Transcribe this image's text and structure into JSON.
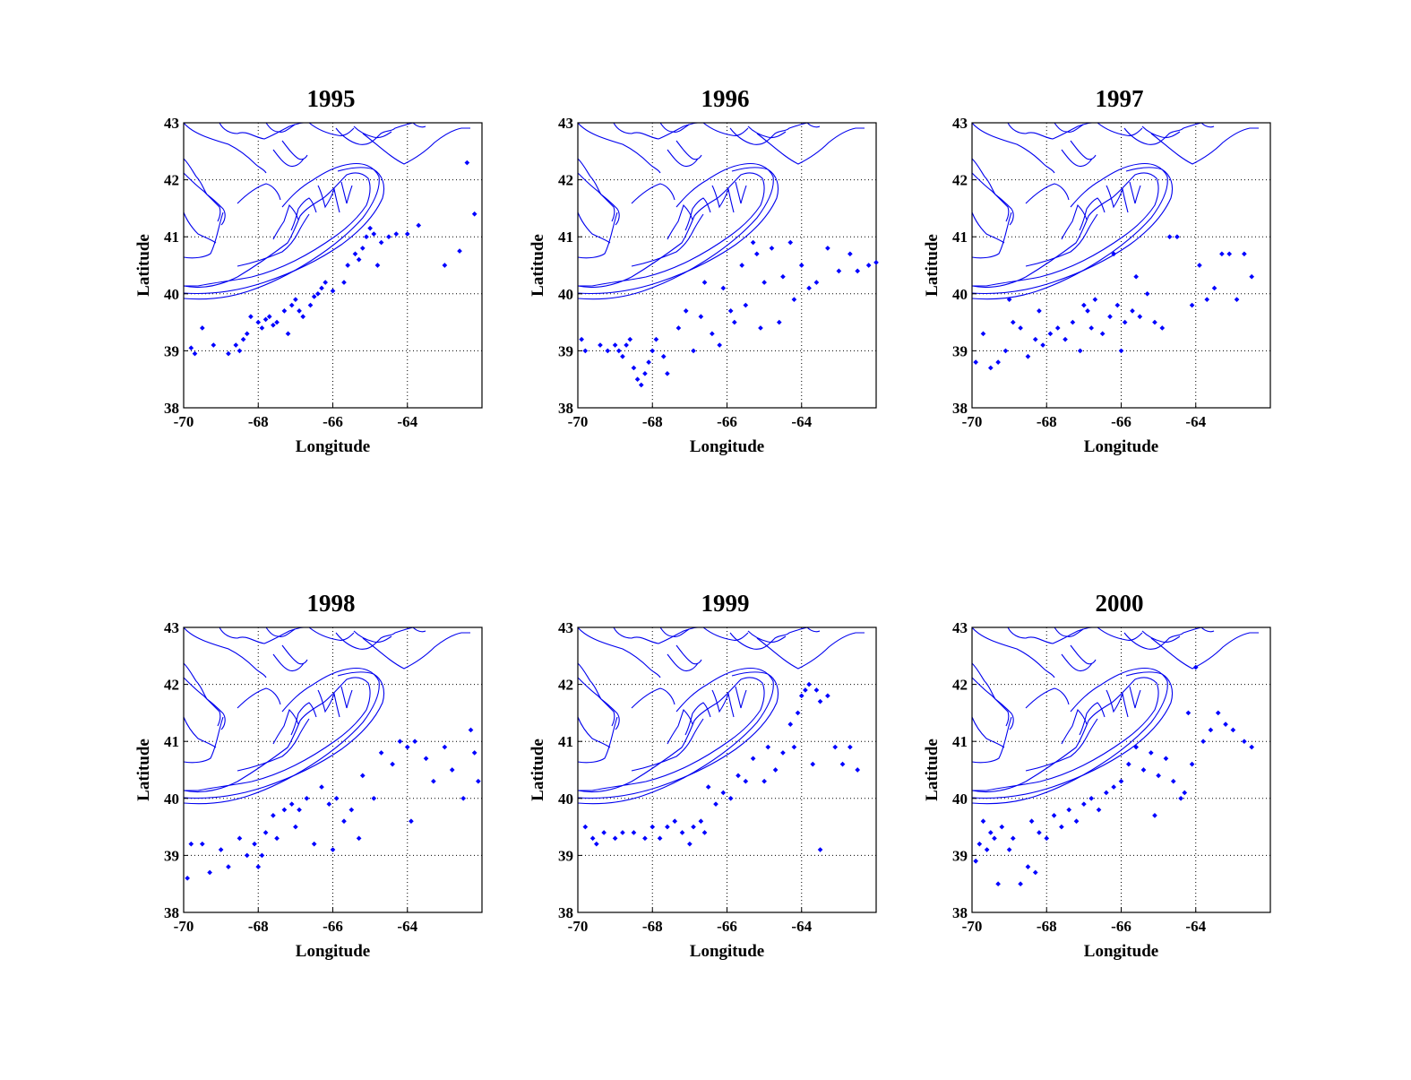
{
  "chart_data": [
    {
      "type": "scatter",
      "title": "1995",
      "xlabel": "Longitude",
      "ylabel": "Latitude",
      "xlim": [
        -70,
        -62
      ],
      "ylim": [
        38,
        43
      ],
      "xticks": [
        "-70",
        "-68",
        "-66",
        "-64"
      ],
      "yticks": [
        "38",
        "39",
        "40",
        "41",
        "42",
        "43"
      ],
      "grid": true,
      "marker_color": "#0000ff",
      "points": [
        [
          -69.8,
          39.05
        ],
        [
          -69.7,
          38.95
        ],
        [
          -69.5,
          39.4
        ],
        [
          -69.2,
          39.1
        ],
        [
          -68.8,
          38.95
        ],
        [
          -68.6,
          39.1
        ],
        [
          -68.5,
          39.0
        ],
        [
          -68.4,
          39.2
        ],
        [
          -68.3,
          39.3
        ],
        [
          -68.0,
          39.5
        ],
        [
          -67.9,
          39.4
        ],
        [
          -67.8,
          39.55
        ],
        [
          -67.7,
          39.6
        ],
        [
          -67.6,
          39.45
        ],
        [
          -67.5,
          39.5
        ],
        [
          -67.3,
          39.7
        ],
        [
          -67.1,
          39.8
        ],
        [
          -67.0,
          39.9
        ],
        [
          -66.9,
          39.7
        ],
        [
          -66.8,
          39.6
        ],
        [
          -66.6,
          39.8
        ],
        [
          -66.5,
          39.95
        ],
        [
          -66.4,
          40.0
        ],
        [
          -66.3,
          40.1
        ],
        [
          -66.2,
          40.2
        ],
        [
          -66.0,
          40.05
        ],
        [
          -65.7,
          40.2
        ],
        [
          -65.6,
          40.5
        ],
        [
          -65.4,
          40.7
        ],
        [
          -65.2,
          40.8
        ],
        [
          -65.1,
          41.0
        ],
        [
          -65.0,
          41.15
        ],
        [
          -64.9,
          41.05
        ],
        [
          -64.7,
          40.9
        ],
        [
          -64.5,
          41.0
        ],
        [
          -64.3,
          41.05
        ],
        [
          -64.0,
          41.05
        ],
        [
          -63.7,
          41.2
        ],
        [
          -63.0,
          40.5
        ],
        [
          -62.6,
          40.75
        ],
        [
          -62.4,
          42.3
        ],
        [
          -62.2,
          41.4
        ],
        [
          -64.8,
          40.5
        ],
        [
          -65.3,
          40.6
        ],
        [
          -67.2,
          39.3
        ],
        [
          -68.2,
          39.6
        ]
      ]
    },
    {
      "type": "scatter",
      "title": "1996",
      "xlabel": "Longitude",
      "ylabel": "Latitude",
      "xlim": [
        -70,
        -62
      ],
      "ylim": [
        38,
        43
      ],
      "xticks": [
        "-70",
        "-68",
        "-66",
        "-64"
      ],
      "yticks": [
        "38",
        "39",
        "40",
        "41",
        "42",
        "43"
      ],
      "grid": true,
      "marker_color": "#0000ff",
      "points": [
        [
          -69.9,
          39.2
        ],
        [
          -69.8,
          39.0
        ],
        [
          -69.4,
          39.1
        ],
        [
          -69.2,
          39.0
        ],
        [
          -69.0,
          39.1
        ],
        [
          -68.9,
          39.0
        ],
        [
          -68.8,
          38.9
        ],
        [
          -68.7,
          39.1
        ],
        [
          -68.6,
          39.2
        ],
        [
          -68.5,
          38.7
        ],
        [
          -68.4,
          38.5
        ],
        [
          -68.3,
          38.4
        ],
        [
          -68.2,
          38.6
        ],
        [
          -68.1,
          38.8
        ],
        [
          -68.0,
          39.0
        ],
        [
          -67.9,
          39.2
        ],
        [
          -67.7,
          38.9
        ],
        [
          -67.6,
          38.6
        ],
        [
          -67.3,
          39.4
        ],
        [
          -67.1,
          39.7
        ],
        [
          -66.9,
          39.0
        ],
        [
          -66.7,
          39.6
        ],
        [
          -66.6,
          40.2
        ],
        [
          -66.4,
          39.3
        ],
        [
          -66.2,
          39.1
        ],
        [
          -66.1,
          40.1
        ],
        [
          -65.9,
          39.7
        ],
        [
          -65.8,
          39.5
        ],
        [
          -65.6,
          40.5
        ],
        [
          -65.5,
          39.8
        ],
        [
          -65.3,
          40.9
        ],
        [
          -65.2,
          40.7
        ],
        [
          -65.0,
          40.2
        ],
        [
          -64.8,
          40.8
        ],
        [
          -64.5,
          40.3
        ],
        [
          -64.3,
          40.9
        ],
        [
          -64.2,
          39.9
        ],
        [
          -64.0,
          40.5
        ],
        [
          -63.8,
          40.1
        ],
        [
          -63.6,
          40.2
        ],
        [
          -63.3,
          40.8
        ],
        [
          -63.0,
          40.4
        ],
        [
          -62.7,
          40.7
        ],
        [
          -62.5,
          40.4
        ],
        [
          -62.2,
          40.5
        ],
        [
          -62.0,
          40.55
        ],
        [
          -64.6,
          39.5
        ],
        [
          -65.1,
          39.4
        ]
      ]
    },
    {
      "type": "scatter",
      "title": "1997",
      "xlabel": "Longitude",
      "ylabel": "Latitude",
      "xlim": [
        -70,
        -62
      ],
      "ylim": [
        38,
        43
      ],
      "xticks": [
        "-70",
        "-68",
        "-66",
        "-64"
      ],
      "yticks": [
        "38",
        "39",
        "40",
        "41",
        "42",
        "43"
      ],
      "grid": true,
      "marker_color": "#0000ff",
      "points": [
        [
          -69.9,
          38.8
        ],
        [
          -69.7,
          39.3
        ],
        [
          -69.5,
          38.7
        ],
        [
          -69.3,
          38.8
        ],
        [
          -69.1,
          39.0
        ],
        [
          -68.9,
          39.5
        ],
        [
          -68.7,
          39.4
        ],
        [
          -68.5,
          38.9
        ],
        [
          -68.3,
          39.2
        ],
        [
          -68.1,
          39.1
        ],
        [
          -67.9,
          39.3
        ],
        [
          -67.7,
          39.4
        ],
        [
          -67.5,
          39.2
        ],
        [
          -67.3,
          39.5
        ],
        [
          -67.1,
          39.0
        ],
        [
          -66.9,
          39.7
        ],
        [
          -66.7,
          39.9
        ],
        [
          -66.5,
          39.3
        ],
        [
          -66.3,
          39.6
        ],
        [
          -66.1,
          39.8
        ],
        [
          -65.9,
          39.5
        ],
        [
          -65.7,
          39.7
        ],
        [
          -65.5,
          39.6
        ],
        [
          -65.3,
          40.0
        ],
        [
          -65.1,
          39.5
        ],
        [
          -64.9,
          39.4
        ],
        [
          -64.7,
          41.0
        ],
        [
          -64.5,
          41.0
        ],
        [
          -63.9,
          40.5
        ],
        [
          -63.7,
          39.9
        ],
        [
          -63.5,
          40.1
        ],
        [
          -63.3,
          40.7
        ],
        [
          -63.1,
          40.7
        ],
        [
          -62.9,
          39.9
        ],
        [
          -62.7,
          40.7
        ],
        [
          -62.5,
          40.3
        ],
        [
          -65.6,
          40.3
        ],
        [
          -66.0,
          39.0
        ],
        [
          -66.2,
          40.7
        ],
        [
          -66.8,
          39.4
        ],
        [
          -67.0,
          39.8
        ],
        [
          -68.2,
          39.7
        ],
        [
          -69.0,
          39.9
        ],
        [
          -64.1,
          39.8
        ]
      ]
    },
    {
      "type": "scatter",
      "title": "1998",
      "xlabel": "Longitude",
      "ylabel": "Latitude",
      "xlim": [
        -70,
        -62
      ],
      "ylim": [
        38,
        43
      ],
      "xticks": [
        "-70",
        "-68",
        "-66",
        "-64"
      ],
      "yticks": [
        "38",
        "39",
        "40",
        "41",
        "42",
        "43"
      ],
      "grid": true,
      "marker_color": "#0000ff",
      "points": [
        [
          -69.9,
          38.6
        ],
        [
          -69.8,
          39.2
        ],
        [
          -69.5,
          39.2
        ],
        [
          -69.3,
          38.7
        ],
        [
          -69.0,
          39.1
        ],
        [
          -68.8,
          38.8
        ],
        [
          -68.5,
          39.3
        ],
        [
          -68.3,
          39.0
        ],
        [
          -68.1,
          39.2
        ],
        [
          -67.9,
          39.0
        ],
        [
          -67.8,
          39.4
        ],
        [
          -67.6,
          39.7
        ],
        [
          -67.5,
          39.3
        ],
        [
          -67.3,
          39.8
        ],
        [
          -67.1,
          39.9
        ],
        [
          -66.9,
          39.8
        ],
        [
          -66.7,
          40.0
        ],
        [
          -66.5,
          39.2
        ],
        [
          -66.3,
          40.2
        ],
        [
          -66.1,
          39.9
        ],
        [
          -65.9,
          40.0
        ],
        [
          -65.7,
          39.6
        ],
        [
          -65.5,
          39.8
        ],
        [
          -65.2,
          40.4
        ],
        [
          -64.9,
          40.0
        ],
        [
          -64.7,
          40.8
        ],
        [
          -64.4,
          40.6
        ],
        [
          -64.2,
          41.0
        ],
        [
          -64.0,
          40.9
        ],
        [
          -63.8,
          41.0
        ],
        [
          -63.5,
          40.7
        ],
        [
          -63.3,
          40.3
        ],
        [
          -63.0,
          40.9
        ],
        [
          -62.8,
          40.5
        ],
        [
          -62.5,
          40.0
        ],
        [
          -62.3,
          41.2
        ],
        [
          -62.2,
          40.8
        ],
        [
          -62.1,
          40.3
        ],
        [
          -63.9,
          39.6
        ],
        [
          -65.3,
          39.3
        ],
        [
          -66.0,
          39.1
        ],
        [
          -67.0,
          39.5
        ],
        [
          -68.0,
          38.8
        ]
      ]
    },
    {
      "type": "scatter",
      "title": "1999",
      "xlabel": "Longitude",
      "ylabel": "Latitude",
      "xlim": [
        -70,
        -62
      ],
      "ylim": [
        38,
        43
      ],
      "xticks": [
        "-70",
        "-68",
        "-66",
        "-64"
      ],
      "yticks": [
        "38",
        "39",
        "40",
        "41",
        "42",
        "43"
      ],
      "grid": true,
      "marker_color": "#0000ff",
      "points": [
        [
          -69.8,
          39.5
        ],
        [
          -69.6,
          39.3
        ],
        [
          -69.5,
          39.2
        ],
        [
          -69.3,
          39.4
        ],
        [
          -69.0,
          39.3
        ],
        [
          -68.8,
          39.4
        ],
        [
          -68.5,
          39.4
        ],
        [
          -68.2,
          39.3
        ],
        [
          -68.0,
          39.5
        ],
        [
          -67.8,
          39.3
        ],
        [
          -67.6,
          39.5
        ],
        [
          -67.4,
          39.6
        ],
        [
          -67.2,
          39.4
        ],
        [
          -67.0,
          39.2
        ],
        [
          -66.9,
          39.5
        ],
        [
          -66.7,
          39.6
        ],
        [
          -66.5,
          40.2
        ],
        [
          -66.3,
          39.9
        ],
        [
          -66.1,
          40.1
        ],
        [
          -65.9,
          40.0
        ],
        [
          -65.7,
          40.4
        ],
        [
          -65.5,
          40.3
        ],
        [
          -65.3,
          40.7
        ],
        [
          -64.9,
          40.9
        ],
        [
          -64.7,
          40.5
        ],
        [
          -64.5,
          40.8
        ],
        [
          -64.3,
          41.3
        ],
        [
          -64.1,
          41.5
        ],
        [
          -64.0,
          41.8
        ],
        [
          -63.9,
          41.9
        ],
        [
          -63.8,
          42.0
        ],
        [
          -63.6,
          41.9
        ],
        [
          -63.5,
          41.7
        ],
        [
          -63.3,
          41.8
        ],
        [
          -63.1,
          40.9
        ],
        [
          -62.9,
          40.6
        ],
        [
          -62.7,
          40.9
        ],
        [
          -62.5,
          40.5
        ],
        [
          -63.7,
          40.6
        ],
        [
          -64.2,
          40.9
        ],
        [
          -65.0,
          40.3
        ],
        [
          -63.5,
          39.1
        ],
        [
          -66.6,
          39.4
        ]
      ]
    },
    {
      "type": "scatter",
      "title": "2000",
      "xlabel": "Longitude",
      "ylabel": "Latitude",
      "xlim": [
        -70,
        -62
      ],
      "ylim": [
        38,
        43
      ],
      "xticks": [
        "-70",
        "-68",
        "-66",
        "-64"
      ],
      "yticks": [
        "38",
        "39",
        "40",
        "41",
        "42",
        "43"
      ],
      "grid": true,
      "marker_color": "#0000ff",
      "points": [
        [
          -69.9,
          38.9
        ],
        [
          -69.8,
          39.2
        ],
        [
          -69.7,
          39.6
        ],
        [
          -69.6,
          39.1
        ],
        [
          -69.5,
          39.4
        ],
        [
          -69.4,
          39.3
        ],
        [
          -69.3,
          38.5
        ],
        [
          -69.2,
          39.5
        ],
        [
          -69.0,
          39.1
        ],
        [
          -68.9,
          39.3
        ],
        [
          -68.7,
          38.5
        ],
        [
          -68.5,
          38.8
        ],
        [
          -68.4,
          39.6
        ],
        [
          -68.2,
          39.4
        ],
        [
          -68.0,
          39.3
        ],
        [
          -67.8,
          39.7
        ],
        [
          -67.6,
          39.5
        ],
        [
          -67.4,
          39.8
        ],
        [
          -67.2,
          39.6
        ],
        [
          -67.0,
          39.9
        ],
        [
          -66.8,
          40.0
        ],
        [
          -66.6,
          39.8
        ],
        [
          -66.4,
          40.1
        ],
        [
          -66.2,
          40.2
        ],
        [
          -66.0,
          40.3
        ],
        [
          -65.8,
          40.6
        ],
        [
          -65.6,
          40.9
        ],
        [
          -65.4,
          40.5
        ],
        [
          -65.2,
          40.8
        ],
        [
          -65.0,
          40.4
        ],
        [
          -64.8,
          40.7
        ],
        [
          -64.6,
          40.3
        ],
        [
          -64.4,
          40.0
        ],
        [
          -64.3,
          40.1
        ],
        [
          -64.1,
          40.6
        ],
        [
          -64.0,
          42.3
        ],
        [
          -63.8,
          41.0
        ],
        [
          -63.6,
          41.2
        ],
        [
          -63.4,
          41.5
        ],
        [
          -63.2,
          41.3
        ],
        [
          -63.0,
          41.2
        ],
        [
          -62.7,
          41.0
        ],
        [
          -62.5,
          40.9
        ],
        [
          -64.2,
          41.5
        ],
        [
          -65.1,
          39.7
        ],
        [
          -68.3,
          38.7
        ]
      ]
    }
  ]
}
